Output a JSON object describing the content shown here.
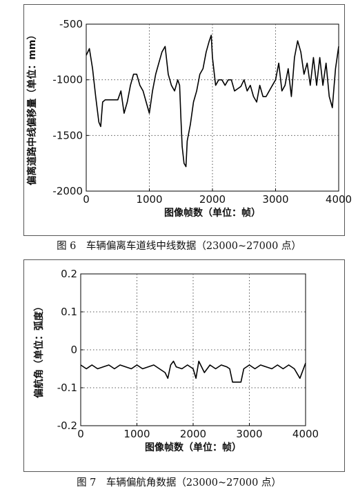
{
  "chart_data": [
    {
      "type": "line",
      "caption": "图 6　车辆偏离车道线中线数据（23000~27000 点）",
      "xlabel": "图像帧数（单位：帧）",
      "ylabel": "偏离道路中线偏移量（单位：mm）",
      "xlim": [
        0,
        4000
      ],
      "ylim": [
        -2000,
        -500
      ],
      "xticks": [
        0,
        1000,
        2000,
        3000,
        4000
      ],
      "xtick_labels": [
        "0",
        "1000",
        "2000",
        "3000",
        "4000"
      ],
      "yticks": [
        -500,
        -1000,
        -1500,
        -2000
      ],
      "ytick_labels": [
        "-500",
        "-1000",
        "-1500",
        "-2000"
      ],
      "grid": true,
      "line_color": "#000000",
      "series": [
        {
          "x": [
            0,
            50,
            100,
            150,
            200,
            230,
            260,
            300,
            400,
            500,
            550,
            600,
            650,
            700,
            750,
            800,
            850,
            900,
            950,
            1000,
            1050,
            1100,
            1150,
            1200,
            1250,
            1300,
            1350,
            1400,
            1450,
            1480,
            1500,
            1520,
            1550,
            1580,
            1600,
            1650,
            1700,
            1750,
            1800,
            1850,
            1900,
            1950,
            1980,
            2000,
            2050,
            2100,
            2150,
            2200,
            2250,
            2300,
            2350,
            2400,
            2450,
            2500,
            2550,
            2600,
            2650,
            2700,
            2750,
            2800,
            2850,
            2900,
            2950,
            3000,
            3050,
            3100,
            3150,
            3200,
            3250,
            3300,
            3350,
            3400,
            3450,
            3500,
            3550,
            3600,
            3650,
            3700,
            3750,
            3800,
            3850,
            3900,
            3950,
            4000
          ],
          "y": [
            -780,
            -720,
            -900,
            -1150,
            -1380,
            -1420,
            -1200,
            -1180,
            -1180,
            -1180,
            -1100,
            -1300,
            -1200,
            -1050,
            -950,
            -950,
            -1050,
            -1100,
            -1200,
            -1300,
            -1100,
            -950,
            -850,
            -750,
            -700,
            -950,
            -1050,
            -1100,
            -1000,
            -1050,
            -1350,
            -1600,
            -1750,
            -1780,
            -1550,
            -1400,
            -1200,
            -1100,
            -950,
            -900,
            -750,
            -650,
            -600,
            -800,
            -1050,
            -1000,
            -1000,
            -1050,
            -1000,
            -1000,
            -1100,
            -1080,
            -1060,
            -1000,
            -1100,
            -1050,
            -1150,
            -1200,
            -1050,
            -1150,
            -1150,
            -1100,
            -1050,
            -1000,
            -850,
            -1100,
            -1050,
            -900,
            -1150,
            -800,
            -650,
            -750,
            -950,
            -850,
            -1050,
            -800,
            -1050,
            -800,
            -1050,
            -850,
            -1150,
            -1250,
            -900,
            -700
          ]
        }
      ]
    },
    {
      "type": "line",
      "caption": "图 7　车辆偏航角数据（23000~27000 点）",
      "xlabel": "图像帧数（单位：帧）",
      "ylabel": "偏航角（单位：弧度）",
      "xlim": [
        0,
        4000
      ],
      "ylim": [
        -0.2,
        0.2
      ],
      "xticks": [
        0,
        1000,
        2000,
        3000,
        4000
      ],
      "xtick_labels": [
        "0",
        "1000",
        "2000",
        "3000",
        "4000"
      ],
      "yticks": [
        0.2,
        0.1,
        0,
        -0.1,
        -0.2
      ],
      "ytick_labels": [
        "0.2",
        "0.1",
        "0",
        "-0.1",
        "-0.2"
      ],
      "grid": true,
      "line_color": "#000000",
      "series": [
        {
          "x": [
            0,
            100,
            200,
            300,
            400,
            500,
            600,
            700,
            800,
            900,
            1000,
            1100,
            1200,
            1300,
            1400,
            1500,
            1550,
            1600,
            1650,
            1700,
            1800,
            1900,
            2000,
            2050,
            2100,
            2200,
            2300,
            2400,
            2500,
            2600,
            2650,
            2700,
            2750,
            2800,
            2850,
            2900,
            3000,
            3100,
            3200,
            3300,
            3400,
            3500,
            3600,
            3700,
            3800,
            3900,
            4000
          ],
          "y": [
            -0.04,
            -0.05,
            -0.04,
            -0.05,
            -0.045,
            -0.04,
            -0.05,
            -0.04,
            -0.045,
            -0.05,
            -0.04,
            -0.05,
            -0.045,
            -0.04,
            -0.05,
            -0.06,
            -0.075,
            -0.04,
            -0.03,
            -0.045,
            -0.05,
            -0.04,
            -0.05,
            -0.075,
            -0.03,
            -0.06,
            -0.04,
            -0.05,
            -0.04,
            -0.045,
            -0.05,
            -0.085,
            -0.085,
            -0.085,
            -0.085,
            -0.05,
            -0.04,
            -0.05,
            -0.04,
            -0.045,
            -0.05,
            -0.04,
            -0.05,
            -0.04,
            -0.05,
            -0.075,
            -0.035
          ]
        }
      ]
    }
  ]
}
